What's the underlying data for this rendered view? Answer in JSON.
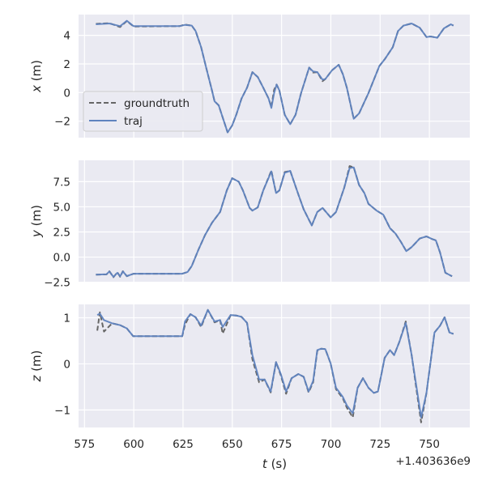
{
  "chart_data": {
    "type": "line",
    "xlabel": "t (s)",
    "x_offset_text": "+1.403636e9",
    "xlim": [
      572,
      770.5
    ],
    "xticks": [
      575,
      600,
      625,
      650,
      675,
      700,
      725,
      750
    ],
    "grid": true,
    "background": "#eaeaf2",
    "legend": {
      "placement": "center-left of top panel",
      "entries": [
        "groundtruth",
        "traj"
      ]
    },
    "series_styles": {
      "groundtruth": {
        "color": "#666666",
        "dash": "dashed"
      },
      "traj": {
        "color": "#5f83bf",
        "dash": "solid"
      }
    },
    "panels": [
      {
        "ylabel_var": "x",
        "ylabel_unit": " (m)",
        "ylim": [
          -3.15,
          5.45
        ],
        "yticks": [
          {
            "v": 4,
            "label": "4"
          },
          {
            "v": 2,
            "label": "2"
          },
          {
            "v": 0,
            "label": "0"
          },
          {
            "v": -2,
            "label": "−2"
          }
        ],
        "show_legend": true,
        "t": [
          580.8,
          587.6,
          593.1,
          596.5,
          599.9,
          623.2,
          626.0,
          629.4,
          631.4,
          634.2,
          636.9,
          639.7,
          641.0,
          643.1,
          645.1,
          647.6,
          649.9,
          652.0,
          654.7,
          657.5,
          660.2,
          662.9,
          665.7,
          668.4,
          669.8,
          671.2,
          672.5,
          673.9,
          676.6,
          679.4,
          682.1,
          684.9,
          689.0,
          691.0,
          693.1,
          695.8,
          697.2,
          700.6,
          704.0,
          706.1,
          708.1,
          711.6,
          714.3,
          719.1,
          724.6,
          727.3,
          731.4,
          734.1,
          736.9,
          741.0,
          745.1,
          748.5,
          750.6,
          754.0,
          757.4,
          760.9,
          762.2
        ],
        "traj": [
          4.77,
          4.83,
          4.64,
          5.02,
          4.64,
          4.64,
          4.73,
          4.68,
          4.3,
          3.17,
          1.66,
          0.15,
          -0.61,
          -0.89,
          -1.74,
          -2.78,
          -2.3,
          -1.55,
          -0.42,
          0.34,
          1.43,
          1.09,
          0.34,
          -0.42,
          -1.08,
          -0.04,
          0.56,
          0.15,
          -1.55,
          -2.21,
          -1.55,
          -0.04,
          1.75,
          1.47,
          1.43,
          0.9,
          0.94,
          1.56,
          1.94,
          1.28,
          0.34,
          -1.83,
          -1.46,
          -0.04,
          1.85,
          2.32,
          3.17,
          4.3,
          4.68,
          4.83,
          4.53,
          3.88,
          3.92,
          3.83,
          4.49,
          4.77,
          4.68
        ],
        "groundtruth": [
          4.8,
          4.85,
          4.58,
          5.0,
          4.62,
          4.64,
          4.75,
          4.68,
          4.3,
          3.17,
          1.66,
          0.15,
          -0.61,
          -0.89,
          -1.74,
          -2.78,
          -2.3,
          -1.55,
          -0.42,
          0.34,
          1.43,
          1.09,
          0.34,
          -0.42,
          -1.0,
          0.2,
          0.56,
          0.15,
          -1.55,
          -2.21,
          -1.55,
          -0.04,
          1.75,
          1.4,
          1.43,
          0.8,
          0.94,
          1.56,
          1.94,
          1.28,
          0.34,
          -1.83,
          -1.46,
          -0.04,
          1.85,
          2.32,
          3.17,
          4.3,
          4.68,
          4.83,
          4.53,
          3.88,
          3.92,
          3.83,
          4.49,
          4.77,
          4.68
        ]
      },
      {
        "ylabel_var": "y",
        "ylabel_unit": " (m)",
        "ylim": [
          -2.45,
          9.62
        ],
        "yticks": [
          {
            "v": 7.5,
            "label": "7.5"
          },
          {
            "v": 5.0,
            "label": "5.0"
          },
          {
            "v": 2.5,
            "label": "2.5"
          },
          {
            "v": 0.0,
            "label": "0.0"
          },
          {
            "v": -2.5,
            "label": "−2.5"
          }
        ],
        "show_legend": false,
        "t": [
          580.8,
          586.2,
          587.6,
          589.7,
          591.7,
          593.1,
          594.5,
          596.5,
          599.9,
          624.6,
          627.3,
          629.4,
          632.8,
          636.2,
          639.7,
          643.8,
          647.2,
          649.9,
          653.3,
          655.4,
          658.8,
          660.2,
          662.9,
          665.7,
          669.8,
          672.2,
          673.9,
          676.6,
          679.4,
          683.5,
          686.2,
          690.3,
          693.1,
          695.8,
          699.9,
          702.6,
          706.8,
          709.5,
          711.6,
          714.3,
          717.0,
          719.1,
          723.2,
          726.6,
          730.0,
          732.8,
          735.5,
          738.3,
          741.0,
          745.1,
          748.5,
          751.3,
          753.3,
          755.4,
          758.1,
          761.5
        ],
        "traj": [
          -1.75,
          -1.7,
          -1.43,
          -1.97,
          -1.56,
          -1.91,
          -1.43,
          -1.89,
          -1.65,
          -1.65,
          -1.48,
          -0.89,
          0.72,
          2.2,
          3.41,
          4.48,
          6.63,
          7.84,
          7.49,
          6.63,
          4.89,
          4.62,
          4.94,
          6.63,
          8.52,
          6.37,
          6.63,
          8.38,
          8.57,
          6.23,
          4.75,
          3.14,
          4.48,
          4.89,
          3.95,
          4.48,
          6.9,
          8.84,
          8.92,
          7.17,
          6.37,
          5.29,
          4.62,
          4.21,
          2.87,
          2.33,
          1.53,
          0.59,
          0.99,
          1.85,
          2.06,
          1.8,
          1.66,
          0.45,
          -1.56,
          -1.91
        ],
        "groundtruth": [
          -1.75,
          -1.72,
          -1.4,
          -2.0,
          -1.5,
          -1.95,
          -1.4,
          -1.9,
          -1.65,
          -1.65,
          -1.48,
          -0.89,
          0.72,
          2.2,
          3.41,
          4.48,
          6.63,
          7.84,
          7.49,
          6.63,
          4.89,
          4.62,
          4.94,
          6.63,
          8.6,
          6.37,
          6.63,
          8.45,
          8.57,
          6.23,
          4.75,
          3.14,
          4.48,
          4.89,
          3.95,
          4.48,
          6.9,
          9.05,
          8.92,
          7.17,
          6.37,
          5.29,
          4.62,
          4.21,
          2.87,
          2.33,
          1.53,
          0.59,
          0.99,
          1.85,
          2.06,
          1.8,
          1.66,
          0.45,
          -1.56,
          -1.91
        ]
      },
      {
        "ylabel_var": "z",
        "ylabel_unit": " (m)",
        "ylim": [
          -1.38,
          1.29
        ],
        "yticks": [
          {
            "v": 1,
            "label": "1"
          },
          {
            "v": 0,
            "label": "0"
          },
          {
            "v": -1,
            "label": "−1"
          }
        ],
        "show_legend": false,
        "t": [
          581.5,
          582.8,
          584.9,
          589.0,
          593.1,
          596.5,
          599.7,
          624.6,
          626.0,
          628.7,
          631.4,
          634.2,
          637.6,
          641.0,
          643.8,
          645.1,
          649.2,
          652.0,
          654.7,
          657.5,
          660.2,
          663.6,
          666.4,
          669.5,
          672.2,
          674.6,
          677.3,
          680.1,
          683.5,
          686.2,
          688.7,
          691.0,
          693.1,
          695.1,
          697.2,
          699.9,
          702.6,
          706.1,
          708.1,
          711.1,
          713.6,
          716.3,
          719.1,
          721.8,
          723.9,
          727.3,
          730.0,
          732.1,
          734.8,
          738.0,
          741.0,
          743.1,
          745.8,
          748.5,
          752.6,
          755.4,
          757.7,
          760.2,
          762.2
        ],
        "traj": [
          1.06,
          1.09,
          0.95,
          0.88,
          0.84,
          0.77,
          0.6,
          0.6,
          0.92,
          1.08,
          1.01,
          0.83,
          1.17,
          0.92,
          0.95,
          0.8,
          1.06,
          1.05,
          1.02,
          0.89,
          0.19,
          -0.34,
          -0.34,
          -0.6,
          0.04,
          -0.22,
          -0.6,
          -0.31,
          -0.22,
          -0.28,
          -0.6,
          -0.37,
          0.3,
          0.33,
          0.32,
          0.01,
          -0.52,
          -0.72,
          -0.9,
          -1.07,
          -0.52,
          -0.31,
          -0.52,
          -0.63,
          -0.6,
          0.13,
          0.3,
          0.19,
          0.48,
          0.89,
          0.19,
          -0.4,
          -1.16,
          -0.63,
          0.68,
          0.83,
          1.01,
          0.68,
          0.65
        ],
        "groundtruth": [
          0.72,
          1.12,
          0.7,
          0.88,
          0.84,
          0.77,
          0.6,
          0.6,
          0.85,
          1.08,
          1.01,
          0.8,
          1.17,
          0.9,
          0.95,
          0.66,
          1.06,
          1.05,
          1.02,
          0.89,
          0.1,
          -0.4,
          -0.34,
          -0.62,
          0.04,
          -0.25,
          -0.65,
          -0.31,
          -0.22,
          -0.28,
          -0.62,
          -0.4,
          0.28,
          0.33,
          0.32,
          0.01,
          -0.55,
          -0.75,
          -0.95,
          -1.16,
          -0.52,
          -0.31,
          -0.52,
          -0.63,
          -0.6,
          0.13,
          0.3,
          0.19,
          0.48,
          0.92,
          0.19,
          -0.45,
          -1.27,
          -0.63,
          0.68,
          0.83,
          1.01,
          0.68,
          0.65
        ]
      }
    ]
  }
}
